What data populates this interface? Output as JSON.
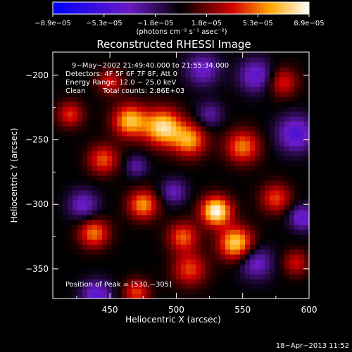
{
  "chart_data": {
    "type": "heatmap",
    "title": "Reconstructed RHESSI Image",
    "xlabel": "Heliocentric X (arcsec)",
    "ylabel": "Heliocentric Y (arcsec)",
    "xlim": [
      407,
      600
    ],
    "ylim": [
      -373,
      -182
    ],
    "x_ticks": [
      450,
      500,
      550,
      600
    ],
    "x_tick_labels": [
      "450",
      "500",
      "550",
      "600"
    ],
    "y_ticks": [
      -200,
      -250,
      -300,
      -350
    ],
    "y_tick_labels": [
      "−200",
      "−250",
      "−300",
      "−350"
    ],
    "colorbar": {
      "range": [
        -8.9e-05,
        8.9e-05
      ],
      "tick_labels": [
        "−8.9e−05",
        "−5.3e−05",
        "−1.8e−05",
        "1.8e−05",
        "5.3e−05",
        "8.9e−05"
      ],
      "label": "(photons cm⁻² s⁻¹ asec⁻²)",
      "colors": [
        "#0000ff",
        "#6a1ac2",
        "#000000",
        "#d20000",
        "#ffa800",
        "#ffffff"
      ]
    },
    "annotations": [
      "9−May−2002 21:49:40.000 to 21:55:34.000",
      "Detectors: 4F 5F 6F 7F 8F, Att 0",
      "Energy Range: 12.0 − 25.0 keV",
      "Clean",
      "Total counts: 2.86E+03",
      "Position of Peak = [530,−305]"
    ],
    "peak": {
      "x": 530,
      "y": -305
    },
    "sources": [
      {
        "x": 530,
        "y": -305,
        "amp": 8.9e-05,
        "sigma": 8
      },
      {
        "x": 545,
        "y": -330,
        "amp": 7.5e-05,
        "sigma": 9
      },
      {
        "x": 490,
        "y": -240,
        "amp": 7.8e-05,
        "sigma": 10
      },
      {
        "x": 465,
        "y": -235,
        "amp": 6.8e-05,
        "sigma": 9
      },
      {
        "x": 510,
        "y": -250,
        "amp": 6e-05,
        "sigma": 9
      },
      {
        "x": 550,
        "y": -255,
        "amp": 5.5e-05,
        "sigma": 9
      },
      {
        "x": 475,
        "y": -300,
        "amp": 6e-05,
        "sigma": 8
      },
      {
        "x": 438,
        "y": -322,
        "amp": 5.5e-05,
        "sigma": 8
      },
      {
        "x": 445,
        "y": -265,
        "amp": 4.8e-05,
        "sigma": 8
      },
      {
        "x": 505,
        "y": -325,
        "amp": 5e-05,
        "sigma": 8
      },
      {
        "x": 510,
        "y": -350,
        "amp": 4.5e-05,
        "sigma": 9
      },
      {
        "x": 575,
        "y": -295,
        "amp": 4.5e-05,
        "sigma": 8
      },
      {
        "x": 580,
        "y": -205,
        "amp": 4e-05,
        "sigma": 8
      },
      {
        "x": 420,
        "y": -230,
        "amp": 4.2e-05,
        "sigma": 7
      },
      {
        "x": 450,
        "y": -205,
        "amp": 3.5e-05,
        "sigma": 7
      },
      {
        "x": 470,
        "y": -368,
        "amp": 4.5e-05,
        "sigma": 7
      },
      {
        "x": 590,
        "y": -345,
        "amp": 3.5e-05,
        "sigma": 7
      },
      {
        "x": 560,
        "y": -200,
        "amp": -4.5e-05,
        "sigma": 9
      },
      {
        "x": 520,
        "y": -195,
        "amp": -4e-05,
        "sigma": 9
      },
      {
        "x": 590,
        "y": -245,
        "amp": -5e-05,
        "sigma": 10
      },
      {
        "x": 430,
        "y": -300,
        "amp": -4e-05,
        "sigma": 8
      },
      {
        "x": 560,
        "y": -345,
        "amp": -4e-05,
        "sigma": 9
      },
      {
        "x": 440,
        "y": -370,
        "amp": -4.5e-05,
        "sigma": 8
      },
      {
        "x": 595,
        "y": -310,
        "amp": -4.5e-05,
        "sigma": 7
      },
      {
        "x": 498,
        "y": -290,
        "amp": -3.5e-05,
        "sigma": 7
      },
      {
        "x": 470,
        "y": -270,
        "amp": -3e-05,
        "sigma": 6
      },
      {
        "x": 525,
        "y": -230,
        "amp": -3e-05,
        "sigma": 7
      }
    ]
  },
  "footer": {
    "timestamp": "18−Apr−2013 11:52"
  }
}
